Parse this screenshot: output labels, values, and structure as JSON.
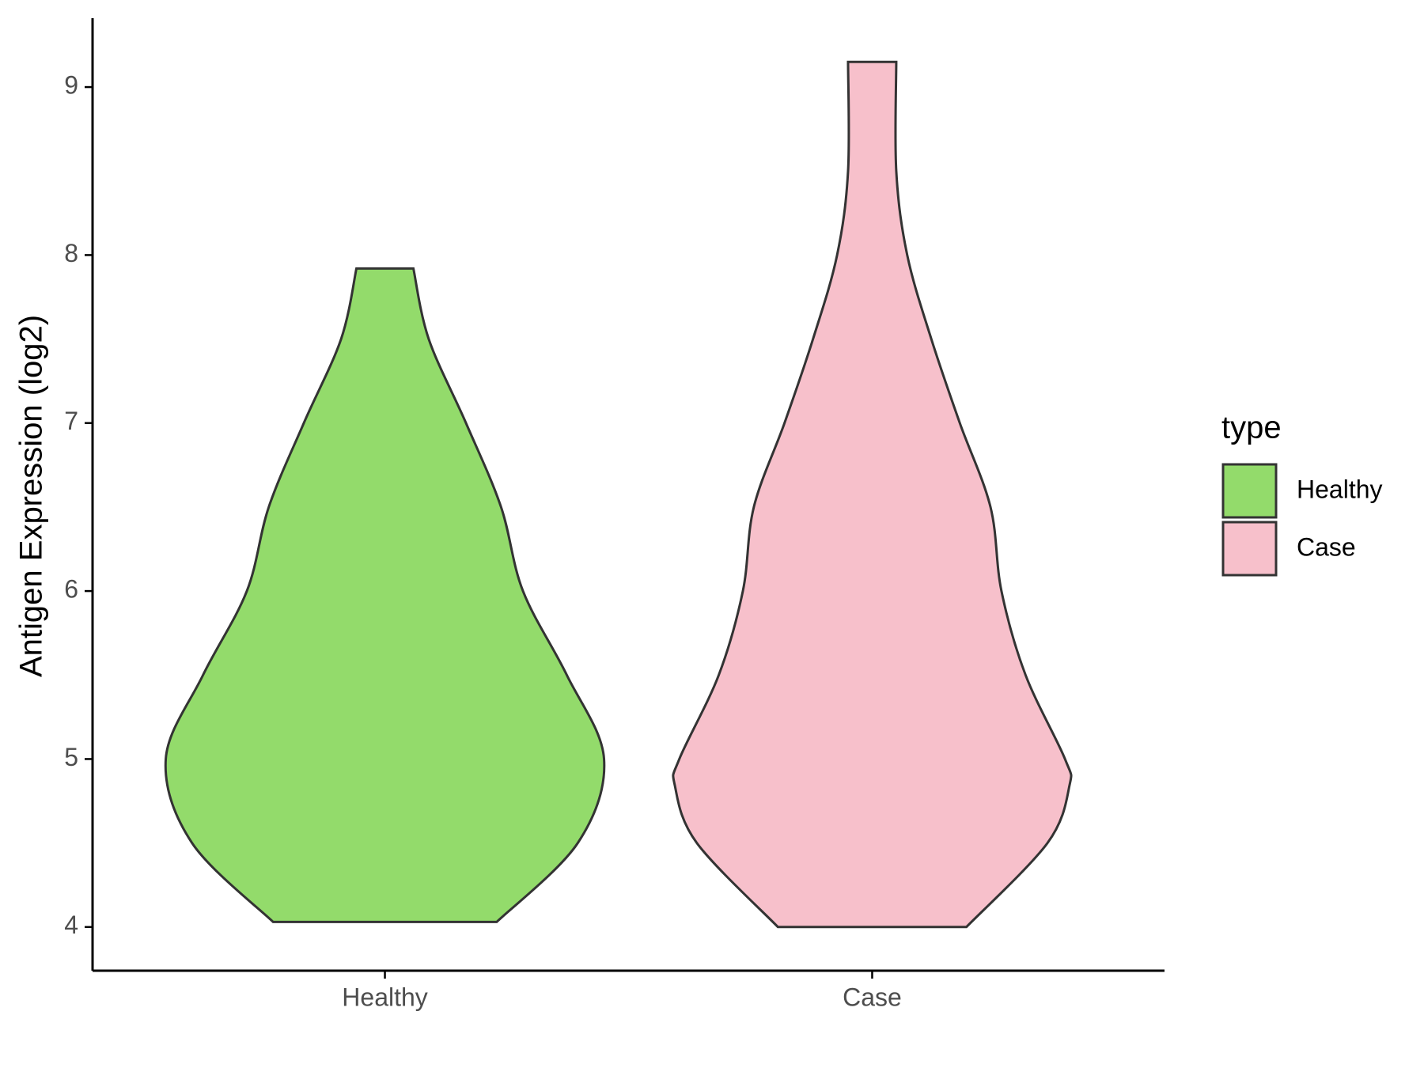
{
  "chart_data": {
    "type": "violin",
    "y_label": "Antigen Expression (log2)",
    "legend_title": "type",
    "categories": [
      "Healthy",
      "Case"
    ],
    "series": [
      {
        "name": "Healthy",
        "color": "#93DB6B",
        "y": [
          4.03,
          4.5,
          5.0,
          5.5,
          6.0,
          6.5,
          7.0,
          7.5,
          7.92
        ],
        "density": [
          0.51,
          0.88,
          1.0,
          0.83,
          0.63,
          0.53,
          0.37,
          0.2,
          0.13
        ]
      },
      {
        "name": "Case",
        "color": "#F7C0CB",
        "y": [
          4.0,
          4.5,
          4.84,
          5.0,
          5.5,
          6.0,
          6.5,
          7.0,
          7.5,
          8.0,
          8.5,
          9.15
        ],
        "density": [
          0.43,
          0.8,
          0.9,
          0.88,
          0.7,
          0.59,
          0.54,
          0.4,
          0.27,
          0.16,
          0.11,
          0.11
        ]
      }
    ],
    "ylim": [
      3.74,
      9.41
    ],
    "yticks": [
      4,
      5,
      6,
      7,
      8,
      9
    ]
  }
}
